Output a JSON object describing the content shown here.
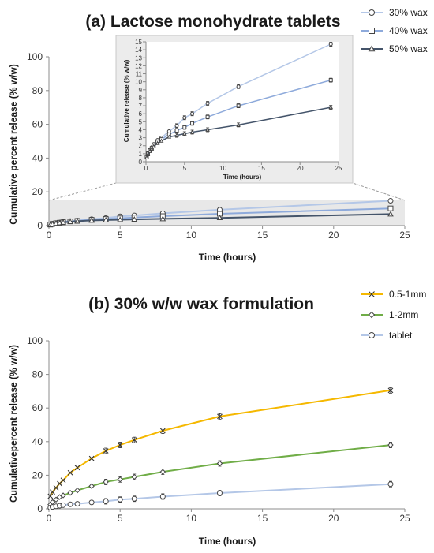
{
  "chart_data": [
    {
      "id": "a_main",
      "type": "line",
      "title": "(a) Lactose monohydrate tablets",
      "xlabel": "Time (hours)",
      "ylabel": "Cumulative percent release (% w/w)",
      "xlim": [
        0,
        25
      ],
      "ylim": [
        0,
        100
      ],
      "xticks": [
        0,
        5,
        10,
        15,
        20,
        25
      ],
      "yticks": [
        0,
        20,
        40,
        60,
        80,
        100
      ],
      "legend_position": "top-right",
      "x": [
        0.1,
        0.25,
        0.5,
        0.75,
        1,
        1.5,
        2,
        3,
        4,
        5,
        6,
        8,
        12,
        24
      ],
      "series": [
        {
          "name": "30% wax",
          "marker": "circle",
          "color": "#b4c7e7",
          "values": [
            0.7,
            1.1,
            1.5,
            1.8,
            2.2,
            2.7,
            3.0,
            3.8,
            4.5,
            5.5,
            6.0,
            7.3,
            9.4,
            14.7
          ]
        },
        {
          "name": "40% wax",
          "marker": "square",
          "color": "#8eaadb",
          "values": [
            0.6,
            1.0,
            1.4,
            1.7,
            2.0,
            2.5,
            2.8,
            3.4,
            3.9,
            4.3,
            4.8,
            5.6,
            7.0,
            10.2
          ]
        },
        {
          "name": "50% wax",
          "marker": "triangle",
          "color": "#44546a",
          "values": [
            0.5,
            0.9,
            1.3,
            1.6,
            1.9,
            2.3,
            2.6,
            3.1,
            3.3,
            3.5,
            3.7,
            4.0,
            4.6,
            6.8
          ]
        }
      ]
    },
    {
      "id": "a_inset",
      "type": "line",
      "xlabel": "Time (hours)",
      "ylabel": "Cumulative release (% w/w)",
      "xlim": [
        0,
        25
      ],
      "ylim": [
        0,
        15
      ],
      "xticks": [
        0,
        5,
        10,
        15,
        20,
        25
      ],
      "yticks": [
        0,
        1,
        2,
        3,
        4,
        5,
        6,
        7,
        8,
        9,
        10,
        11,
        12,
        13,
        14,
        15
      ]
    },
    {
      "id": "b",
      "type": "line",
      "title": "(b) 30% w/w wax formulation",
      "xlabel": "Time (hours)",
      "ylabel": "Cumulativepercent release (% w/w)",
      "xlim": [
        0,
        25
      ],
      "ylim": [
        0,
        100
      ],
      "xticks": [
        0,
        5,
        10,
        15,
        20,
        25
      ],
      "yticks": [
        0,
        20,
        40,
        60,
        80,
        100
      ],
      "legend_position": "top-right",
      "x": [
        0.1,
        0.25,
        0.5,
        0.75,
        1,
        1.5,
        2,
        3,
        4,
        5,
        6,
        8,
        12,
        24
      ],
      "series": [
        {
          "name": "0.5-1mm",
          "marker": "x",
          "color": "#f5b800",
          "values": [
            7.5,
            10,
            12.5,
            15,
            17,
            21.5,
            24.5,
            30,
            34.5,
            38,
            41,
            46.5,
            55,
            70.5
          ]
        },
        {
          "name": "1-2mm",
          "marker": "diamond",
          "color": "#70ad47",
          "values": [
            2.5,
            4,
            5.5,
            7,
            8,
            9.5,
            11,
            13.5,
            16,
            17.5,
            19,
            22,
            27,
            38
          ]
        },
        {
          "name": "tablet",
          "marker": "circle",
          "color": "#b4c7e7",
          "values": [
            0.7,
            1.1,
            1.5,
            1.8,
            2.2,
            2.7,
            3.0,
            3.8,
            4.5,
            5.5,
            6.0,
            7.3,
            9.4,
            14.7
          ]
        }
      ]
    }
  ]
}
